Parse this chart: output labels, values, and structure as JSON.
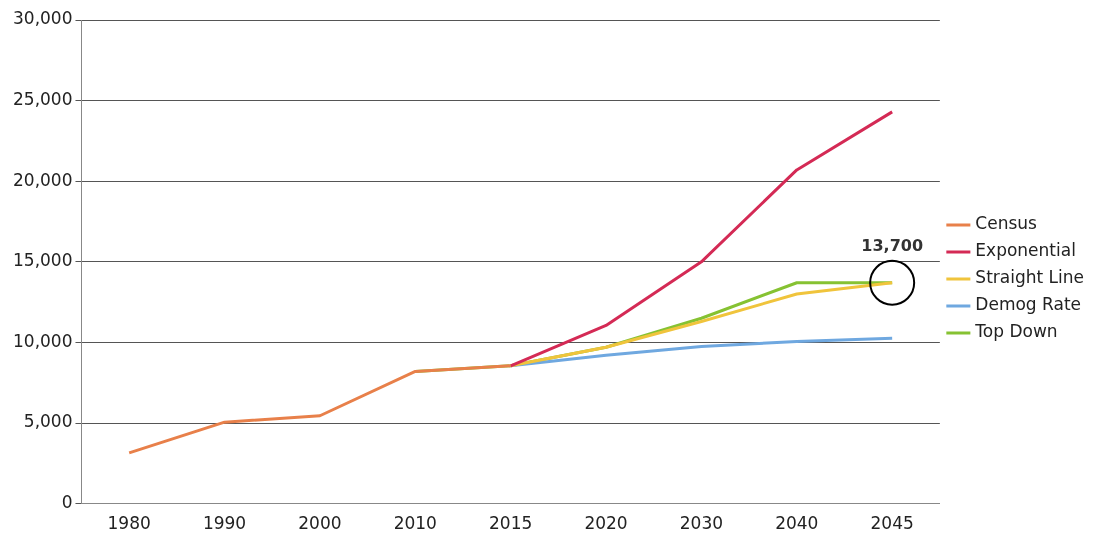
{
  "chart_data": {
    "type": "line",
    "categories": [
      "1980",
      "1990",
      "2000",
      "2010",
      "2015",
      "2020",
      "2030",
      "2040",
      "2045"
    ],
    "series": [
      {
        "name": "Census",
        "color": "#e8804a",
        "values": [
          3150,
          5050,
          5450,
          8200,
          8550,
          null,
          null,
          null,
          null
        ]
      },
      {
        "name": "Exponential",
        "color": "#d42a55",
        "values": [
          null,
          null,
          null,
          null,
          8550,
          11050,
          15000,
          20700,
          24300
        ]
      },
      {
        "name": "Straight Line",
        "color": "#f0c43c",
        "values": [
          null,
          null,
          null,
          null,
          8550,
          9700,
          11300,
          13000,
          13700
        ]
      },
      {
        "name": "Demog Rate",
        "color": "#6fa8e0",
        "values": [
          null,
          null,
          null,
          null,
          8550,
          9200,
          9750,
          10050,
          10250
        ]
      },
      {
        "name": "Top Down",
        "color": "#86c232",
        "values": [
          null,
          null,
          null,
          8200,
          8550,
          9700,
          11500,
          13700,
          13700
        ]
      }
    ],
    "ylim": [
      0,
      30000
    ],
    "yticks": [
      {
        "value": 0,
        "label": "0"
      },
      {
        "value": 5000,
        "label": "5,000"
      },
      {
        "value": 10000,
        "label": "10,000"
      },
      {
        "value": 15000,
        "label": "15,000"
      },
      {
        "value": 20000,
        "label": "20,000"
      },
      {
        "value": 25000,
        "label": "25,000"
      },
      {
        "value": 30000,
        "label": "30,000"
      }
    ],
    "grid": "y",
    "legend": "right",
    "marker": "none",
    "annotations": [
      {
        "text": "13,700",
        "x": "2045",
        "y": 13700
      }
    ]
  }
}
